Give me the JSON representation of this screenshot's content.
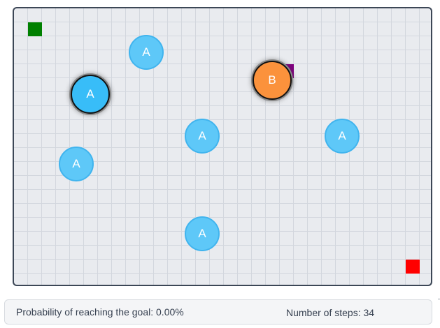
{
  "board": {
    "grid": true,
    "colors": {
      "start": "#008000",
      "goal": "#ff0000",
      "marker": "#800080",
      "agent_a": "#5ec8f8",
      "agent_a_active": "#38bdf8",
      "agent_b": "#fb923c"
    },
    "agents": [
      {
        "label": "A"
      },
      {
        "label": "A"
      },
      {
        "label": "B"
      },
      {
        "label": "A"
      },
      {
        "label": "A"
      },
      {
        "label": "A"
      },
      {
        "label": "A"
      }
    ]
  },
  "status": {
    "probability_text": "Probability of reaching the goal: 0.00%",
    "steps_text": "Number of steps: 34"
  }
}
